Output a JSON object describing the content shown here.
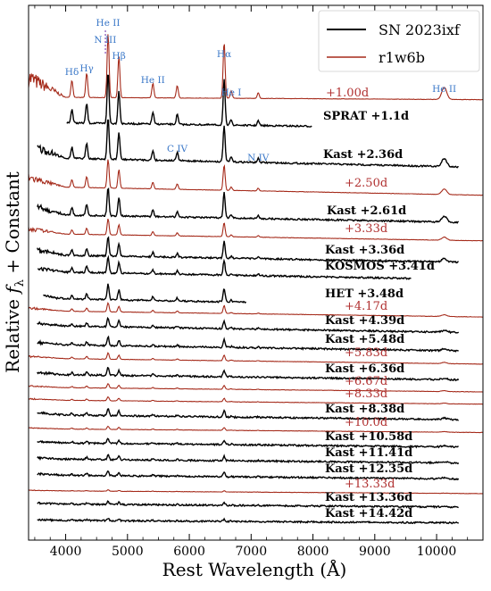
{
  "chart_data": {
    "type": "line",
    "title": "",
    "xlabel": "Rest Wavelength (Å)",
    "ylabel": "Relative f_λ + Constant",
    "ylabel_main": "Relative ",
    "ylabel_f": "f",
    "ylabel_sub": "λ",
    "ylabel_tail": " + Constant",
    "xlim": [
      3400,
      10750
    ],
    "x_ticks": [
      4000,
      5000,
      6000,
      7000,
      8000,
      9000,
      10000
    ],
    "x_tick_labels": [
      "4000",
      "5000",
      "6000",
      "7000",
      "8000",
      "9000",
      "10000"
    ],
    "y_ticks_shown": false,
    "grid": false,
    "legend": {
      "location": "top-right",
      "entries": [
        {
          "label": "SN 2023ixf",
          "color": "#000000"
        },
        {
          "label": "r1w6b",
          "color": "#a52a1a"
        }
      ]
    },
    "colors": {
      "observed": "#000000",
      "model": "#a52a1a",
      "annotation": "#3b78c8",
      "label_model": "#b03030"
    },
    "line_ids": [
      {
        "label": "Hδ",
        "wave": 4101,
        "level": 0
      },
      {
        "label": "Hγ",
        "wave": 4340,
        "level": 0
      },
      {
        "label": "N III",
        "wave": 4640,
        "level": 1
      },
      {
        "label": "He II",
        "wave": 4686,
        "level": 2
      },
      {
        "label": "Hβ",
        "wave": 4861,
        "level": 0
      },
      {
        "label": "He II",
        "wave": 5411,
        "level": 0
      },
      {
        "label": "Hα",
        "wave": 6563,
        "level": 0
      },
      {
        "label": "He I",
        "wave": 6678,
        "level": 0
      },
      {
        "label": "He II",
        "wave": 10124,
        "level": 0
      },
      {
        "label": "C IV",
        "wave": 5805,
        "level": 0
      },
      {
        "label": "N IV",
        "wave": 7115,
        "level": 0
      }
    ],
    "series": [
      {
        "label": "+1.00d",
        "kind": "model",
        "x_range": [
          3400,
          10750
        ]
      },
      {
        "label": "SPRAT +1.1d",
        "kind": "observed",
        "x_range": [
          4020,
          7980
        ]
      },
      {
        "label": "Kast +2.36d",
        "kind": "observed",
        "x_range": [
          3540,
          10360
        ]
      },
      {
        "label": "+2.50d",
        "kind": "model",
        "x_range": [
          3400,
          10750
        ]
      },
      {
        "label": "Kast +2.61d",
        "kind": "observed",
        "x_range": [
          3540,
          10360
        ]
      },
      {
        "label": "+3.33d",
        "kind": "model",
        "x_range": [
          3400,
          10750
        ]
      },
      {
        "label": "Kast +3.36d",
        "kind": "observed",
        "x_range": [
          3540,
          10360
        ]
      },
      {
        "label": "KOSMOS +3.41d",
        "kind": "observed",
        "x_range": [
          3550,
          9590
        ]
      },
      {
        "label": "HET +3.48d",
        "kind": "observed",
        "x_range": [
          3640,
          6920
        ]
      },
      {
        "label": "+4.17d",
        "kind": "model",
        "x_range": [
          3400,
          10750
        ]
      },
      {
        "label": "Kast +4.39d",
        "kind": "observed",
        "x_range": [
          3540,
          10360
        ]
      },
      {
        "label": "Kast +5.48d",
        "kind": "observed",
        "x_range": [
          3540,
          10360
        ]
      },
      {
        "label": "+5.83d",
        "kind": "model",
        "x_range": [
          3400,
          10750
        ]
      },
      {
        "label": "Kast +6.36d",
        "kind": "observed",
        "x_range": [
          3540,
          10360
        ]
      },
      {
        "label": "+6.67d",
        "kind": "model",
        "x_range": [
          3400,
          10750
        ]
      },
      {
        "label": "+8.33d",
        "kind": "model",
        "x_range": [
          3400,
          10750
        ]
      },
      {
        "label": "Kast +8.38d",
        "kind": "observed",
        "x_range": [
          3540,
          10360
        ]
      },
      {
        "label": "+10.0d",
        "kind": "model",
        "x_range": [
          3400,
          10750
        ]
      },
      {
        "label": "Kast +10.58d",
        "kind": "observed",
        "x_range": [
          3540,
          10360
        ]
      },
      {
        "label": "Kast +11.41d",
        "kind": "observed",
        "x_range": [
          3540,
          10360
        ]
      },
      {
        "label": "Kast +12.35d",
        "kind": "observed",
        "x_range": [
          3540,
          10360
        ]
      },
      {
        "label": "+13.33d",
        "kind": "model",
        "x_range": [
          3400,
          10750
        ]
      },
      {
        "label": "Kast +13.36d",
        "kind": "observed",
        "x_range": [
          3540,
          10360
        ]
      },
      {
        "label": "Kast +14.42d",
        "kind": "observed",
        "x_range": [
          3540,
          10360
        ]
      }
    ]
  }
}
